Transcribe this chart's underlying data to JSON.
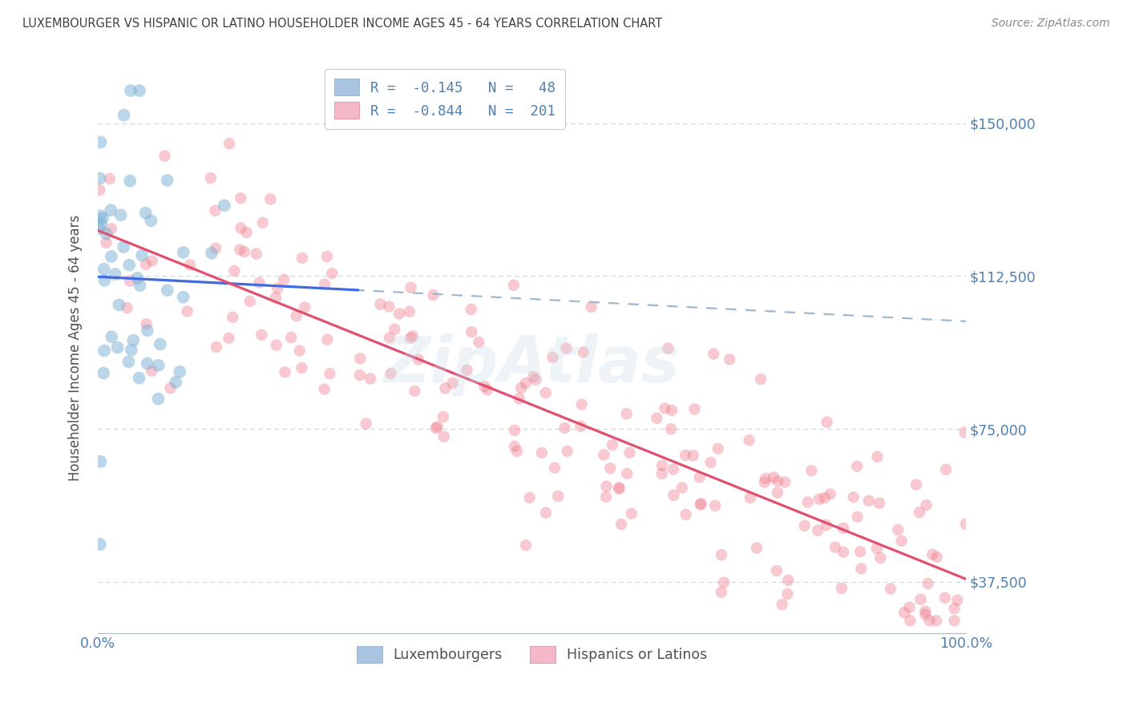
{
  "title": "LUXEMBOURGER VS HISPANIC OR LATINO HOUSEHOLDER INCOME AGES 45 - 64 YEARS CORRELATION CHART",
  "source": "Source: ZipAtlas.com",
  "ylabel": "Householder Income Ages 45 - 64 years",
  "xlim": [
    0,
    100
  ],
  "ylim": [
    25000,
    165000
  ],
  "yticks": [
    37500,
    75000,
    112500,
    150000
  ],
  "ytick_labels": [
    "$37,500",
    "$75,000",
    "$112,500",
    "$150,000"
  ],
  "xtick_labels": [
    "0.0%",
    "100.0%"
  ],
  "blue_scatter_color": "#7bafd4",
  "pink_scatter_color": "#f08090",
  "blue_scatter_edge": "#7bafd4",
  "pink_scatter_edge": "#f08090",
  "trend_blue_color": "#4169e1",
  "trend_pink_color": "#e05070",
  "trend_dashed_color": "#a0b8cf",
  "background_color": "#ffffff",
  "grid_color": "#c8d4e0",
  "title_color": "#404040",
  "axis_label_color": "#5080b0",
  "ylabel_color": "#505050",
  "watermark": "ZipAtlas",
  "watermark_color": "#c8d8e8",
  "legend_blue_face": "#a8c4e0",
  "legend_pink_face": "#f4b8c8",
  "legend_text_black": "#404040",
  "legend_text_blue": "#4169e1",
  "lux_N": 48,
  "hisp_N": 201,
  "lux_x_scale": 4.5,
  "lux_x_max": 30,
  "hisp_x_min": 0,
  "hisp_x_max": 100,
  "lux_y_intercept": 112000,
  "lux_slope": -600,
  "hisp_y_intercept": 127000,
  "hisp_slope": -920,
  "lux_noise": 22000,
  "hisp_noise": 12000
}
